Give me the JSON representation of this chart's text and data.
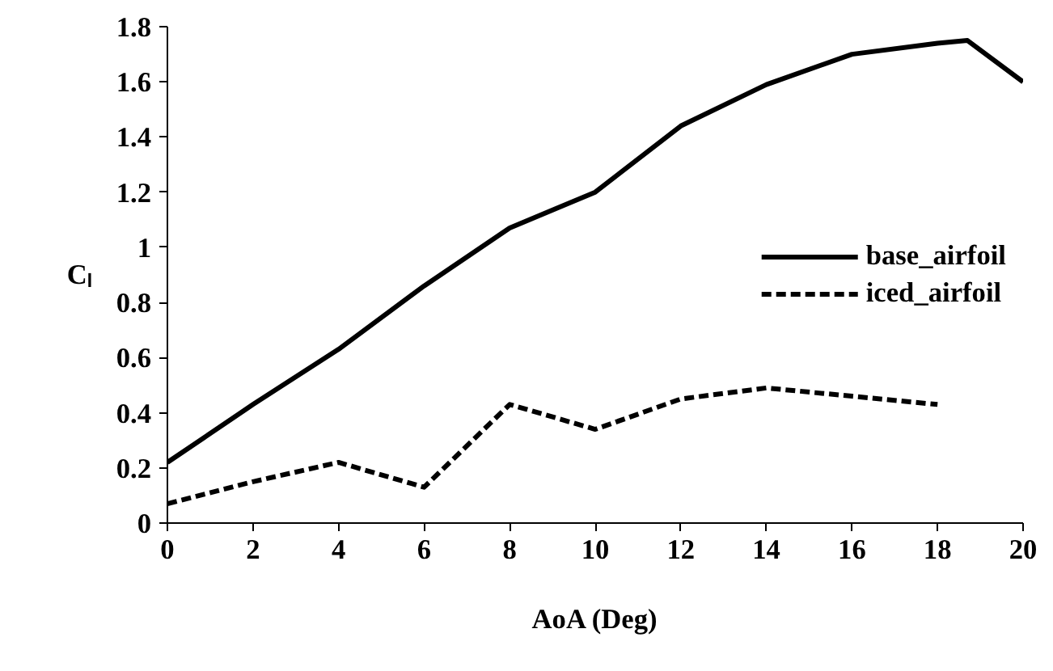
{
  "chart_data": {
    "type": "line",
    "xlabel": "AoA (Deg)",
    "ylabel": "Cₗ",
    "xlim": [
      0,
      20
    ],
    "ylim": [
      0,
      1.8
    ],
    "xticks": [
      0,
      2,
      4,
      6,
      8,
      10,
      12,
      14,
      16,
      18,
      20
    ],
    "yticks": [
      0,
      {
        "value": 0.2,
        "label": "0.2"
      },
      {
        "value": 0.4,
        "label": "0.4"
      },
      {
        "value": 0.6,
        "label": "0.6"
      },
      {
        "value": 0.8,
        "label": "0.8"
      },
      1,
      {
        "value": 1.2,
        "label": "1.2"
      },
      {
        "value": 1.4,
        "label": "1.4"
      },
      {
        "value": 1.6,
        "label": "1.6"
      },
      {
        "value": 1.8,
        "label": "1.8"
      }
    ],
    "grid": false,
    "legend": "right",
    "marker": "none",
    "series": [
      {
        "name": "base_airfoil",
        "color": "#000000",
        "line_style": "solid",
        "x": [
          0,
          2,
          4,
          6,
          8,
          10,
          12,
          14,
          16,
          18,
          18.7,
          20
        ],
        "values": [
          0.22,
          0.43,
          0.63,
          0.86,
          1.07,
          1.2,
          1.44,
          1.59,
          1.7,
          1.74,
          1.75,
          1.6
        ]
      },
      {
        "name": "iced_airfoil",
        "color": "#000000",
        "line_style": "dashed",
        "x": [
          0,
          2,
          4,
          6,
          8,
          10,
          12,
          14,
          16,
          18
        ],
        "values": [
          0.07,
          0.15,
          0.22,
          0.13,
          0.43,
          0.34,
          0.45,
          0.49,
          0.46,
          0.43
        ]
      }
    ]
  }
}
